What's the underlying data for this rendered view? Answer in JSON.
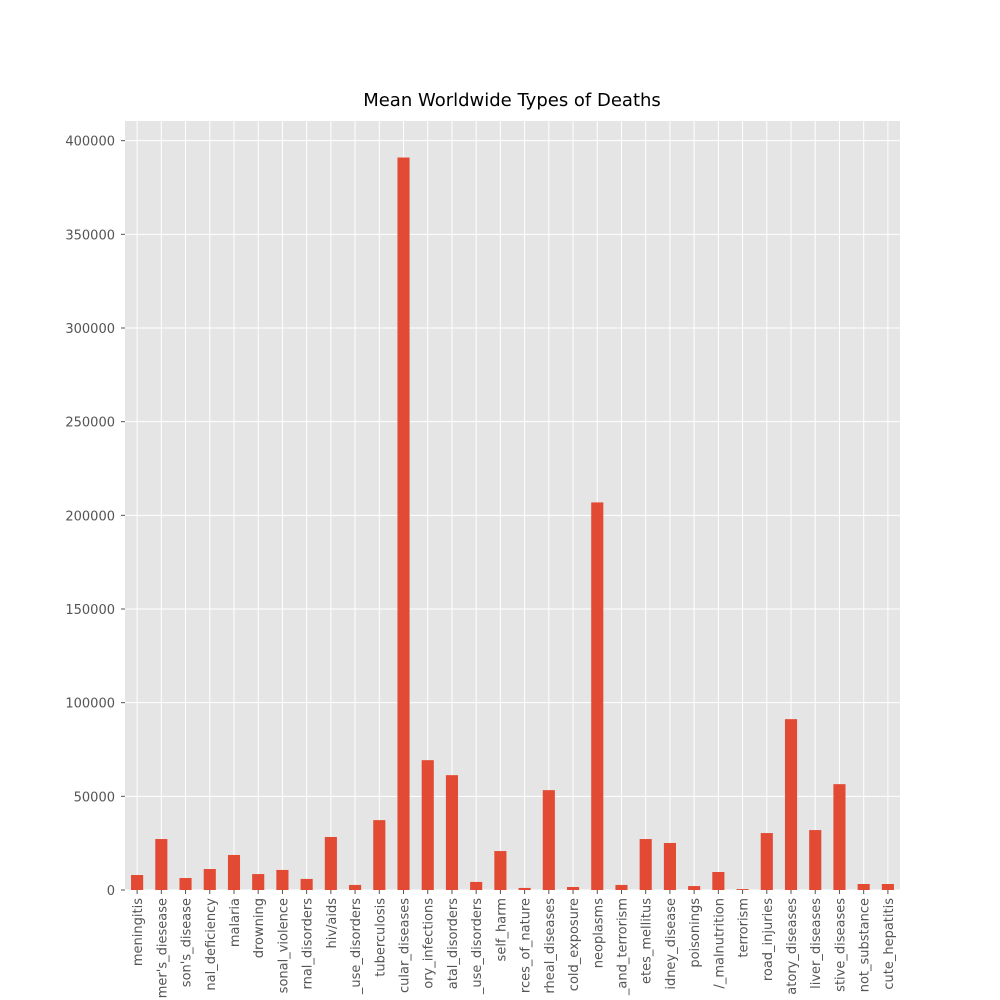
{
  "chart_data": {
    "type": "bar",
    "title": "Mean Worldwide Types of Deaths",
    "categories": [
      "meningitis",
      "mer's_diesease",
      "son's_disease",
      "nal_deficiency",
      "malaria",
      "drowning",
      "sonal_violence",
      "rnal_disorders",
      "hiv/aids",
      "_use_disorders",
      "tuberculosis",
      "cular_diseases",
      "ory_infections",
      "atal_disorders",
      "_use_disorders",
      "self_harm",
      "rces_of_nature",
      "rheal_diseases",
      "cold_exposure",
      "neoplasms",
      "_and_terrorism",
      "etes_mellitus",
      "idney_disease",
      "poisonings",
      "/_malnutrition",
      "terrorism",
      "road_injuries",
      "atory_diseases",
      "liver_diseases",
      "stive_diseases",
      "not_substance",
      "cute_hepatitis"
    ],
    "values": [
      8000,
      27200,
      6400,
      11200,
      18700,
      8500,
      10700,
      5900,
      28300,
      2700,
      37300,
      391000,
      69300,
      61300,
      4300,
      20800,
      1100,
      53300,
      1600,
      206900,
      2700,
      27200,
      25100,
      2100,
      9600,
      500,
      30400,
      91200,
      32000,
      56500,
      3200,
      3200
    ],
    "color": "#E24A33",
    "ylim": [
      0,
      410500
    ],
    "yticks": [
      0,
      50000,
      100000,
      150000,
      200000,
      250000,
      300000,
      350000,
      400000
    ],
    "grid": true
  }
}
